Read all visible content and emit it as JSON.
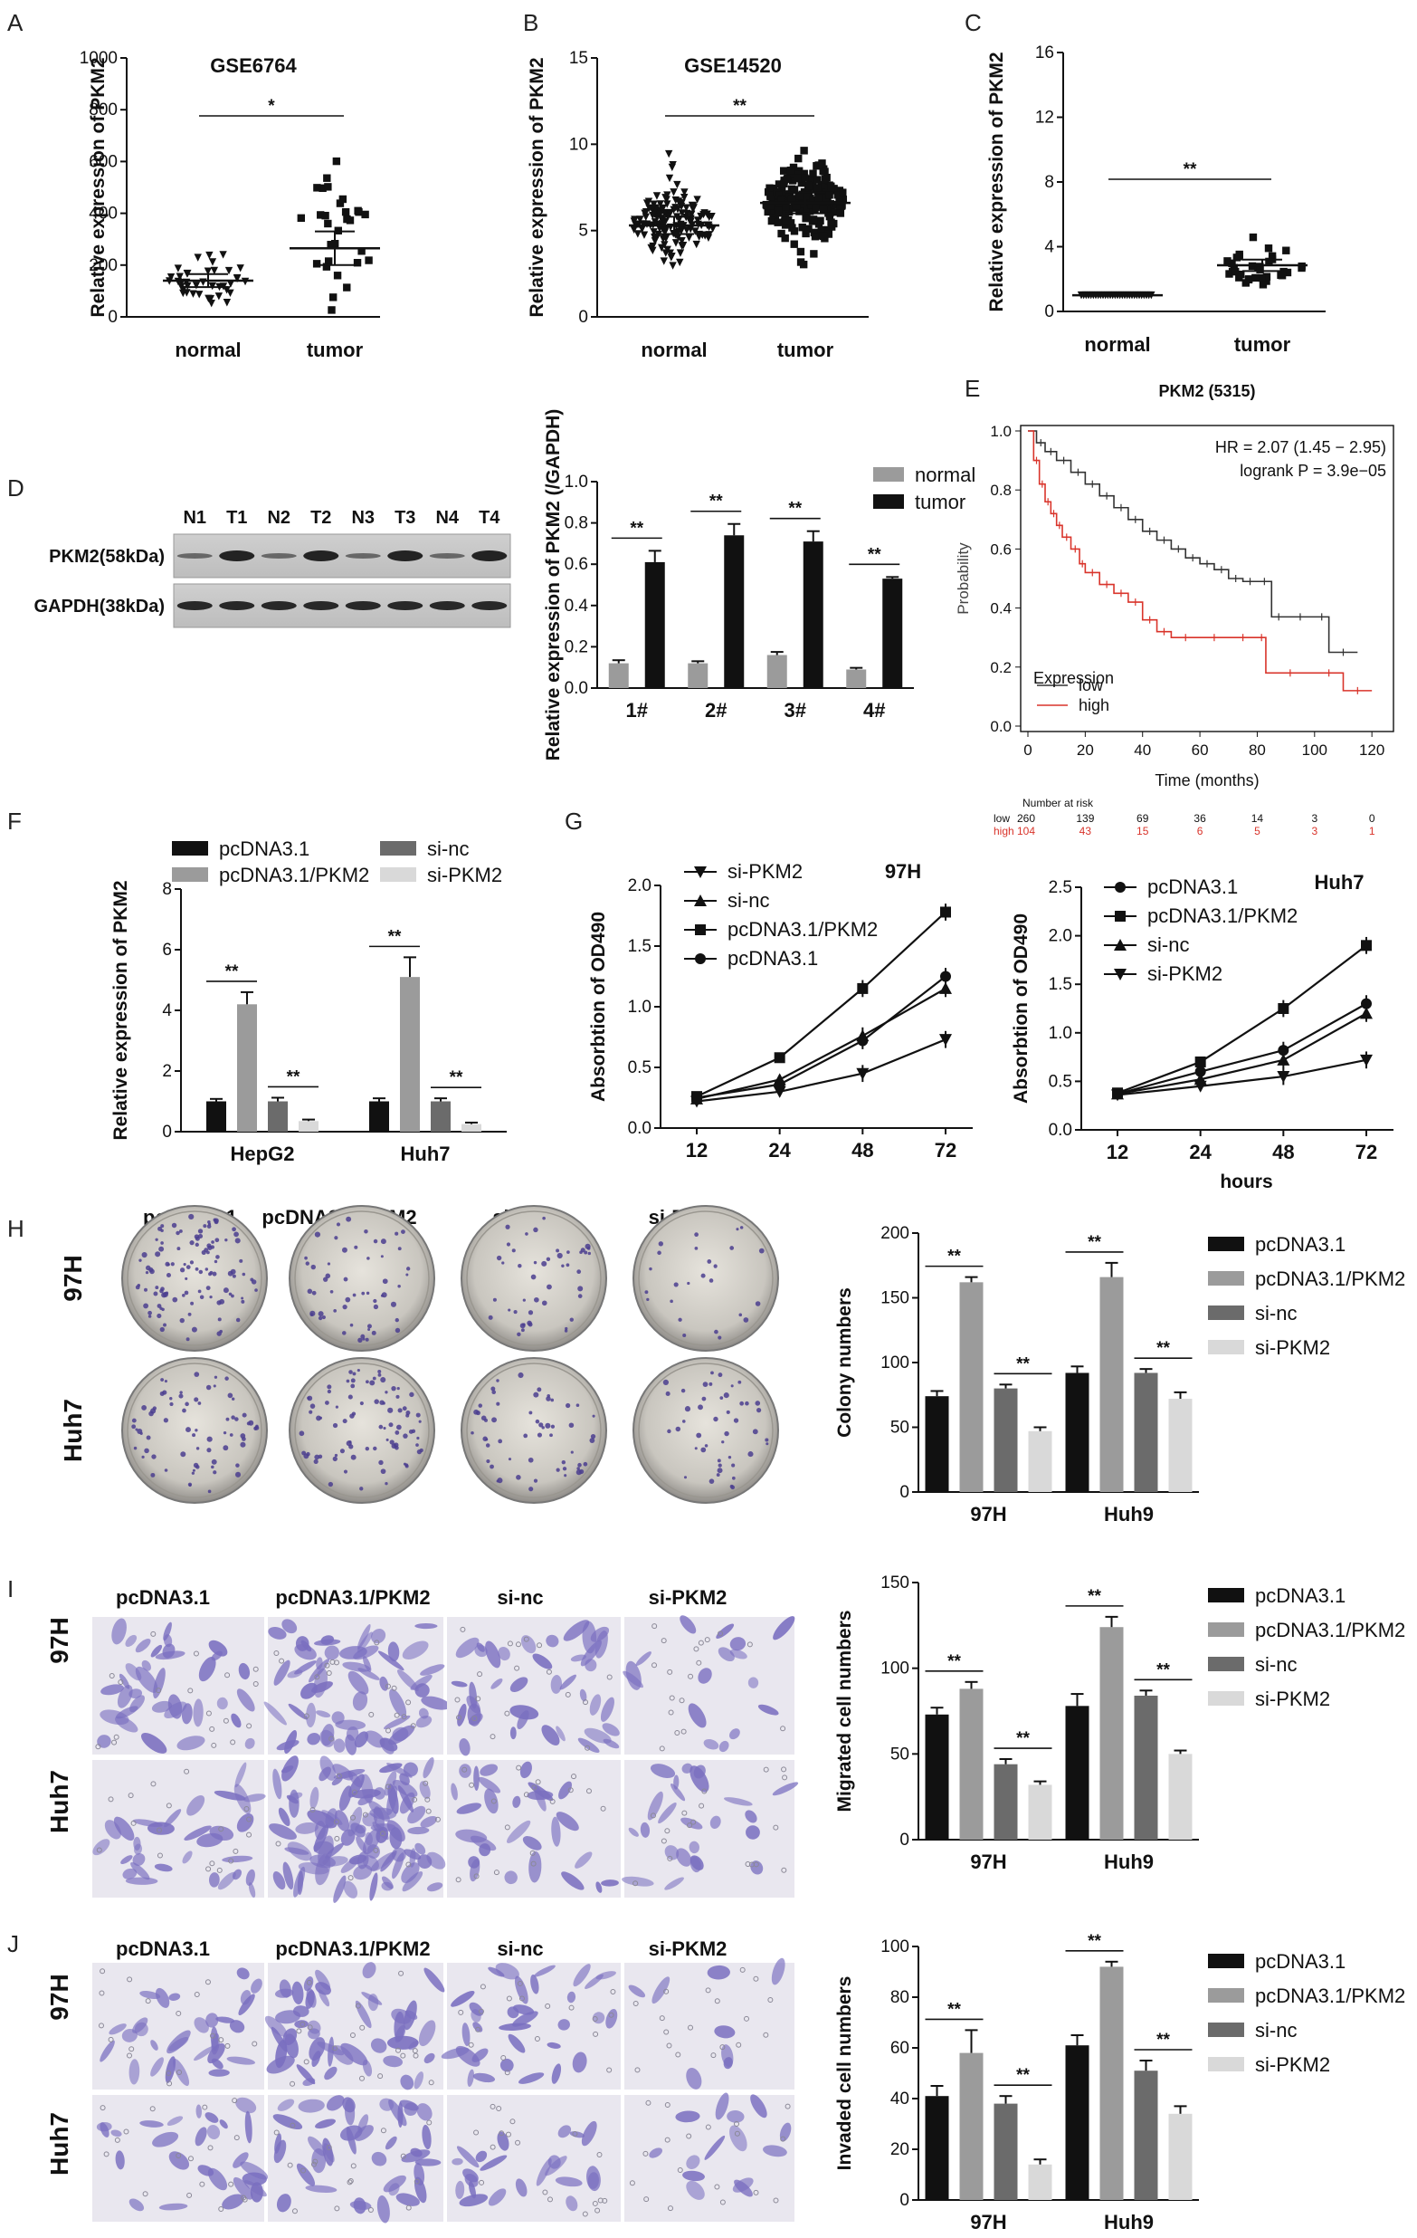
{
  "panel_labels": {
    "A": "A",
    "B": "B",
    "C": "C",
    "D": "D",
    "E": "E",
    "F": "F",
    "G": "G",
    "H": "H",
    "I": "I",
    "J": "J"
  },
  "colors": {
    "black": "#111111",
    "dark_gray": "#6b6b6b",
    "mid_gray": "#9b9b9b",
    "light_gray": "#d9d9d9",
    "km_low": "#333333",
    "km_high": "#d9342b",
    "stain": "#7a6fc0"
  },
  "chart_data": [
    {
      "id": "A",
      "type": "scatter",
      "title": "GSE6764",
      "ylabel": "Relative expression of PKM2",
      "categories": [
        "normal",
        "tumor"
      ],
      "ylim": [
        0,
        1000
      ],
      "yticks": [
        0,
        200,
        400,
        600,
        800,
        1000
      ],
      "means": [
        140,
        265
      ],
      "sd": [
        [
          115,
          165
        ],
        [
          200,
          330
        ]
      ],
      "n": [
        40,
        30
      ],
      "significance": "*"
    },
    {
      "id": "B",
      "type": "scatter",
      "title": "GSE14520",
      "ylabel": "Relative expression of PKM2",
      "categories": [
        "normal",
        "tumor"
      ],
      "ylim": [
        0,
        15
      ],
      "yticks": [
        0,
        5,
        10,
        15
      ],
      "means": [
        5.3,
        6.6
      ],
      "sd": [
        [
          4.8,
          5.8
        ],
        [
          6.0,
          7.2
        ]
      ],
      "n": [
        150,
        200
      ],
      "significance": "**"
    },
    {
      "id": "C",
      "type": "scatter",
      "title": "",
      "ylabel": "Relative expression of PKM2",
      "categories": [
        "normal",
        "tumor"
      ],
      "ylim": [
        0,
        16
      ],
      "yticks": [
        0,
        4,
        8,
        12,
        16
      ],
      "means": [
        1.0,
        2.85
      ],
      "sd": [
        [
          1.0,
          1.0
        ],
        [
          2.5,
          3.2
        ]
      ],
      "n": [
        30,
        35
      ],
      "significance": "**"
    },
    {
      "id": "D_blot",
      "type": "table",
      "lanes": [
        "N1",
        "T1",
        "N2",
        "T2",
        "N3",
        "T3",
        "N4",
        "T4"
      ],
      "rows": [
        "PKM2(58kDa)",
        "GAPDH(38kDa)"
      ]
    },
    {
      "id": "D_bar",
      "type": "bar",
      "ylabel": "Relative expression of PKM2 (/GAPDH)",
      "categories": [
        "1#",
        "2#",
        "3#",
        "4#"
      ],
      "ylim": [
        0,
        1.0
      ],
      "yticks": [
        0,
        0.2,
        0.4,
        0.6,
        0.8,
        1.0
      ],
      "series": [
        {
          "name": "normal",
          "values": [
            0.12,
            0.12,
            0.16,
            0.09
          ],
          "err": [
            0.015,
            0.01,
            0.015,
            0.008
          ]
        },
        {
          "name": "tumor",
          "values": [
            0.61,
            0.74,
            0.71,
            0.53
          ],
          "err": [
            0.055,
            0.055,
            0.05,
            0.008
          ]
        }
      ],
      "significance": [
        "**",
        "**",
        "**",
        "**"
      ]
    },
    {
      "id": "E",
      "type": "line",
      "title": "PKM2 (5315)",
      "xlabel": "Time (months)",
      "ylabel": "Probability",
      "hr": "HR = 2.07 (1.45 − 2.95)",
      "logrank": "logrank P = 3.9e−05",
      "legend_title": "Expression",
      "xlim": [
        0,
        125
      ],
      "xticks": [
        0,
        20,
        40,
        60,
        80,
        100,
        120
      ],
      "ylim": [
        0,
        1
      ],
      "yticks": [
        0.0,
        0.2,
        0.4,
        0.6,
        0.8,
        1.0
      ],
      "series": [
        {
          "name": "low",
          "x": [
            0,
            3,
            6,
            10,
            15,
            20,
            25,
            30,
            35,
            40,
            45,
            50,
            55,
            60,
            65,
            70,
            75,
            80,
            85,
            90,
            100,
            105,
            115
          ],
          "y": [
            1.0,
            0.96,
            0.93,
            0.9,
            0.86,
            0.82,
            0.78,
            0.74,
            0.7,
            0.66,
            0.63,
            0.6,
            0.57,
            0.55,
            0.53,
            0.5,
            0.49,
            0.49,
            0.37,
            0.37,
            0.37,
            0.25,
            0.25
          ]
        },
        {
          "name": "high",
          "x": [
            0,
            2,
            4,
            6,
            8,
            10,
            12,
            15,
            18,
            20,
            25,
            30,
            35,
            40,
            45,
            50,
            60,
            70,
            80,
            83,
            100,
            110,
            120
          ],
          "y": [
            1.0,
            0.9,
            0.82,
            0.76,
            0.72,
            0.68,
            0.64,
            0.6,
            0.55,
            0.52,
            0.48,
            0.45,
            0.42,
            0.36,
            0.32,
            0.3,
            0.3,
            0.3,
            0.3,
            0.18,
            0.18,
            0.12,
            0.12
          ]
        }
      ],
      "risk": {
        "header": "Number at risk",
        "times": [
          0,
          20,
          40,
          60,
          80,
          100,
          120
        ],
        "low_label": "low",
        "low": [
          "260",
          "139",
          "69",
          "36",
          "14",
          "3",
          "0"
        ],
        "high_label": "high",
        "high": [
          "104",
          "43",
          "15",
          "6",
          "5",
          "3",
          "1"
        ]
      }
    },
    {
      "id": "F",
      "type": "bar",
      "ylabel": "Relative expression of PKM2",
      "categories": [
        "HepG2",
        "Huh7"
      ],
      "ylim": [
        0,
        8
      ],
      "yticks": [
        0,
        2,
        4,
        6,
        8
      ],
      "series": [
        {
          "name": "pcDNA3.1",
          "values": [
            1.0,
            1.0
          ]
        },
        {
          "name": "pcDNA3.1/PKM2",
          "values": [
            4.2,
            5.1
          ]
        },
        {
          "name": "si-nc",
          "values": [
            1.0,
            1.0
          ]
        },
        {
          "name": "si-PKM2",
          "values": [
            0.35,
            0.25
          ]
        }
      ],
      "err": [
        [
          0.08,
          0.1
        ],
        [
          0.4,
          0.65
        ],
        [
          0.12,
          0.1
        ],
        [
          0.05,
          0.05
        ]
      ],
      "significance": [
        "**",
        "**",
        "**",
        "**"
      ]
    },
    {
      "id": "G1",
      "type": "line",
      "title": "97H",
      "ylabel": "Absorbtion of OD490",
      "xlabel": "",
      "categories": [
        "12",
        "24",
        "48",
        "72"
      ],
      "ylim": [
        0,
        2.0
      ],
      "yticks": [
        0.0,
        0.5,
        1.0,
        1.5,
        2.0
      ],
      "series": [
        {
          "name": "si-PKM2",
          "marker": "tri-down",
          "values": [
            0.22,
            0.3,
            0.45,
            0.73
          ]
        },
        {
          "name": "si-nc",
          "marker": "tri-up",
          "values": [
            0.24,
            0.4,
            0.76,
            1.15
          ]
        },
        {
          "name": "pcDNA3.1/PKM2",
          "marker": "square",
          "values": [
            0.26,
            0.58,
            1.15,
            1.78
          ]
        },
        {
          "name": "pcDNA3.1",
          "marker": "circle",
          "values": [
            0.25,
            0.36,
            0.72,
            1.25
          ]
        }
      ]
    },
    {
      "id": "G2",
      "type": "line",
      "title": "Huh7",
      "ylabel": "Absorbtion of OD490",
      "xlabel": "hours",
      "categories": [
        "12",
        "24",
        "48",
        "72"
      ],
      "ylim": [
        0,
        2.5
      ],
      "yticks": [
        0.0,
        0.5,
        1.0,
        1.5,
        2.0,
        2.5
      ],
      "series": [
        {
          "name": "pcDNA3.1",
          "marker": "circle",
          "values": [
            0.37,
            0.6,
            0.82,
            1.3
          ]
        },
        {
          "name": "pcDNA3.1/PKM2",
          "marker": "square",
          "values": [
            0.38,
            0.7,
            1.25,
            1.9
          ]
        },
        {
          "name": "si-nc",
          "marker": "tri-up",
          "values": [
            0.37,
            0.52,
            0.72,
            1.2
          ]
        },
        {
          "name": "si-PKM2",
          "marker": "tri-down",
          "values": [
            0.36,
            0.45,
            0.55,
            0.72
          ]
        }
      ]
    },
    {
      "id": "H_bar",
      "type": "bar",
      "ylabel": "Colony numbers",
      "categories": [
        "97H",
        "Huh9"
      ],
      "ylim": [
        0,
        200
      ],
      "yticks": [
        0,
        50,
        100,
        150,
        200
      ],
      "series": [
        {
          "name": "pcDNA3.1",
          "values": [
            74,
            92
          ]
        },
        {
          "name": "pcDNA3.1/PKM2",
          "values": [
            162,
            166
          ]
        },
        {
          "name": "si-nc",
          "values": [
            80,
            92
          ]
        },
        {
          "name": "si-PKM2",
          "values": [
            47,
            72
          ]
        }
      ],
      "err": [
        [
          4,
          5
        ],
        [
          4,
          11
        ],
        [
          3,
          3
        ],
        [
          3,
          5
        ]
      ],
      "significance": [
        "**",
        "**",
        "**",
        "**"
      ]
    },
    {
      "id": "I_bar",
      "type": "bar",
      "ylabel": "Migrated cell numbers",
      "categories": [
        "97H",
        "Huh9"
      ],
      "ylim": [
        0,
        150
      ],
      "yticks": [
        0,
        50,
        100,
        150
      ],
      "series": [
        {
          "name": "pcDNA3.1",
          "values": [
            73,
            78
          ]
        },
        {
          "name": "pcDNA3.1/PKM2",
          "values": [
            88,
            124
          ]
        },
        {
          "name": "si-nc",
          "values": [
            44,
            84
          ]
        },
        {
          "name": "si-PKM2",
          "values": [
            32,
            50
          ]
        }
      ],
      "err": [
        [
          4,
          7
        ],
        [
          4,
          6
        ],
        [
          3,
          3
        ],
        [
          2,
          2
        ]
      ],
      "significance": [
        "**",
        "**",
        "**",
        "**"
      ]
    },
    {
      "id": "J_bar",
      "type": "bar",
      "ylabel": "Invaded cell numbers",
      "categories": [
        "97H",
        "Huh9"
      ],
      "ylim": [
        0,
        100
      ],
      "yticks": [
        0,
        20,
        40,
        60,
        80,
        100
      ],
      "series": [
        {
          "name": "pcDNA3.1",
          "values": [
            41,
            61
          ]
        },
        {
          "name": "pcDNA3.1/PKM2",
          "values": [
            58,
            92
          ]
        },
        {
          "name": "si-nc",
          "values": [
            38,
            51
          ]
        },
        {
          "name": "si-PKM2",
          "values": [
            14,
            34
          ]
        }
      ],
      "err": [
        [
          4,
          4
        ],
        [
          9,
          2
        ],
        [
          3,
          4
        ],
        [
          2,
          3
        ]
      ],
      "significance": [
        "**",
        "**",
        "**",
        "**"
      ]
    }
  ],
  "image_panels": {
    "headers": [
      "pcDNA3.1",
      "pcDNA3.1/PKM2",
      "si-nc",
      "si-PKM2"
    ],
    "rows": [
      "97H",
      "Huh7"
    ]
  }
}
